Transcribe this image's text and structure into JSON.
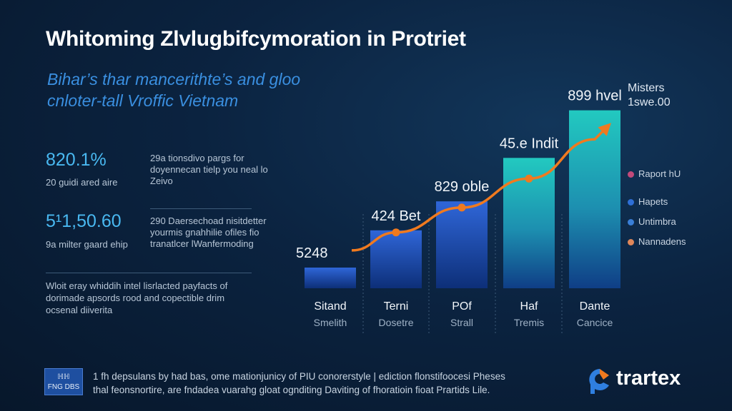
{
  "title": "Whitoming Zlvlugbifcymoration in Protriet",
  "subtitle": {
    "line1": "Bihar’s thar mancerithte’s and gloo",
    "line2": "cnloter-tall Vroffic Vietnam"
  },
  "stats": [
    {
      "value": "820.1%",
      "caption": "20 guidi ared aire",
      "note_line1": "29a tionsdivo pargs for",
      "note_line2": "doyennecan tielp you neal lo",
      "note_line3": "Zeivo"
    },
    {
      "value": "5¹1,50.60",
      "caption": "9a milter gaard ehip",
      "note_line1": "290 Daersechoad nisitdetter",
      "note_line2": "yourmis gnahhilie ofiles fio",
      "note_line3": "tranatlcer lWanfermoding"
    }
  ],
  "paragraph": {
    "line1": "Wloit eray whiddih intel lisrlacted payfacts of",
    "line2": "dorimade apsords rood and copectible drim",
    "line3": "ocsenal diiverita"
  },
  "corner_note": {
    "line1": "Misters",
    "line2": "1swe.00"
  },
  "legend": [
    {
      "label": "Raport hU",
      "color": "#c24a7a"
    },
    {
      "label": "Hapets",
      "color": "#2f6fd6"
    },
    {
      "label": "Untimbra",
      "color": "#3a7fd8"
    },
    {
      "label": "Nannadens",
      "color": "#e0875a"
    }
  ],
  "footer": {
    "badge_line1": "ℍℍ",
    "badge_line2": "FNG DBS",
    "line1": "1 fh depsulans by had bas, ome mationjunicy of PIU conorerstyle | ediction flonstifoocesi Pheses",
    "line2": "thal feonsnortire, are fndadea vuarahg gloat ognditing Daviting of fhoratioin fioat Prartids Lile."
  },
  "brand": {
    "name": "trartex"
  },
  "chart_data": {
    "type": "bar",
    "categories": [
      "Sitand",
      "Terni",
      "POf",
      "Haf",
      "Dante"
    ],
    "category_sublabels": [
      "Smelith",
      "Dosetre",
      "Strall",
      "Tremis",
      "Cancice"
    ],
    "data_labels": [
      "5248",
      "424 Bet",
      "829 oble",
      "45.e Indit",
      "899 hvel"
    ],
    "values": [
      10,
      28,
      42,
      63,
      86
    ],
    "trend": [
      19,
      27,
      39,
      53,
      72
    ],
    "ylim": [
      0,
      100
    ],
    "colors": {
      "bar_top": "#2f5fd0",
      "bar_bottom": "#0f3a8a",
      "bar_teal": "#1fc8c0",
      "trend": "#f07a1f"
    }
  }
}
